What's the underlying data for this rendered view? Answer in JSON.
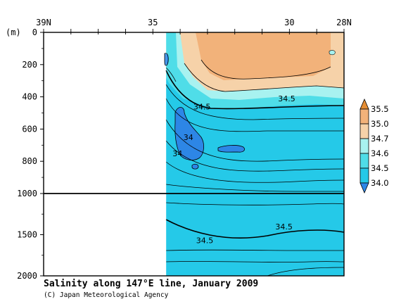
{
  "chart_data": {
    "type": "heatmap",
    "title": "Salinity along 147°E line, January 2009",
    "credit": "(C) Japan Meteorological Agency",
    "x_axis": {
      "tick_labels": [
        "39N",
        "35",
        "30",
        "28N"
      ],
      "tick_values_lat": [
        39,
        35,
        30,
        28
      ],
      "direction": "decreasing latitude (north to south)"
    },
    "y_axis": {
      "unit_label": "(m)",
      "tick_labels": [
        "0",
        "200",
        "400",
        "600",
        "800",
        "1000",
        "1500",
        "2000"
      ],
      "tick_values": [
        0,
        200,
        400,
        600,
        800,
        1000,
        1500,
        2000
      ],
      "scale_break_depth": 1000,
      "range": [
        0,
        2000
      ]
    },
    "no_data_region": {
      "lat_from": 39,
      "lat_to": 35.1
    },
    "contour_labels": [
      {
        "text": "34.5",
        "lat": 33.2,
        "depth": 460
      },
      {
        "text": "34.5",
        "lat": 30.1,
        "depth": 410
      },
      {
        "text": "34",
        "lat": 33.7,
        "depth": 650
      },
      {
        "text": "34",
        "lat": 34.1,
        "depth": 750
      },
      {
        "text": "34.5",
        "lat": 30.2,
        "depth": 1400
      },
      {
        "text": "34.5",
        "lat": 33.1,
        "depth": 1570
      }
    ],
    "legend": {
      "placement": "right",
      "levels": [
        "35.5",
        "35.0",
        "34.7",
        "34.6",
        "34.5",
        "34.0"
      ],
      "bands": [
        {
          "range": "> 35.5",
          "color": "#e58d33"
        },
        {
          "range": "35.0 - 35.5",
          "color": "#f2b27a"
        },
        {
          "range": "34.7 - 35.0",
          "color": "#f6d2a9"
        },
        {
          "range": "34.6 - 34.7",
          "color": "#a8f2f0"
        },
        {
          "range": "34.5 - 34.6",
          "color": "#4fdde8"
        },
        {
          "range": "34.0 - 34.5",
          "color": "#25c9e8"
        },
        {
          "range": "< 34.0",
          "color": "#2d86e6"
        }
      ]
    },
    "colors": {
      "deep_water": "#25c9e8",
      "mid_water": "#4fdde8",
      "upper_cyan": "#a8f2f0",
      "surface_peach": "#f6d2a9",
      "core_tan": "#f2b27a",
      "low_salinity": "#2d86e6",
      "frame": "#000000"
    }
  }
}
